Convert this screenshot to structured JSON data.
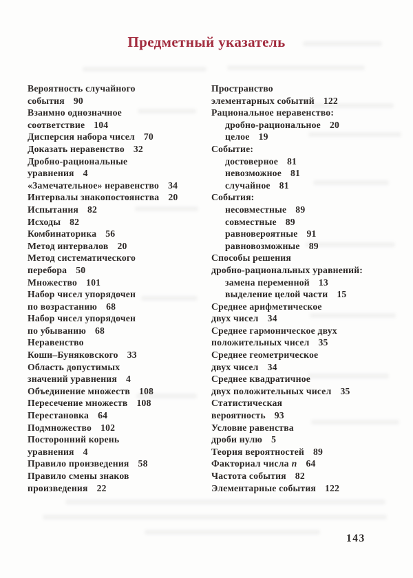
{
  "page": {
    "title": "Предметный указатель",
    "page_number": "143"
  },
  "index": {
    "columns": [
      {
        "side": "left",
        "lines": [
          {
            "text": "Вероятность случайного"
          },
          {
            "text": "события",
            "page": "90"
          },
          {
            "text": "Взаимно однозначное"
          },
          {
            "text": "соответствие",
            "page": "104"
          },
          {
            "text": "Дисперсия набора чисел",
            "page": "70"
          },
          {
            "text": "Доказать неравенство",
            "page": "32"
          },
          {
            "text": "Дробно-рациональные"
          },
          {
            "text": "уравнения",
            "page": "4"
          },
          {
            "text": "«Замечательное» неравенство",
            "page": "34"
          },
          {
            "text": "Интервалы знакопостоянства",
            "page": "20"
          },
          {
            "text": "Испытания",
            "page": "82"
          },
          {
            "text": "Исходы",
            "page": "82"
          },
          {
            "text": "Комбинаторика",
            "page": "56"
          },
          {
            "text": "Метод интервалов",
            "page": "20"
          },
          {
            "text": "Метод систематического"
          },
          {
            "text": "перебора",
            "page": "50"
          },
          {
            "text": "Множество",
            "page": "101"
          },
          {
            "text": "Набор чисел упорядочен"
          },
          {
            "text": "по возрастанию",
            "page": "68"
          },
          {
            "text": "Набор чисел упорядочен"
          },
          {
            "text": "по убыванию",
            "page": "68"
          },
          {
            "text": "Неравенство"
          },
          {
            "text": "Коши–Буняковского",
            "page": "33"
          },
          {
            "text": "Область допустимых"
          },
          {
            "text": "значений уравнения",
            "page": "4"
          },
          {
            "text": "Объединение множеств",
            "page": "108"
          },
          {
            "text": "Пересечение множеств",
            "page": "108"
          },
          {
            "text": "Перестановка",
            "page": "64"
          },
          {
            "text": "Подмножество",
            "page": "102"
          },
          {
            "text": "Посторонний корень"
          },
          {
            "text": "уравнения",
            "page": "4"
          },
          {
            "text": "Правило произведения",
            "page": "58"
          },
          {
            "text": "Правило смены знаков"
          },
          {
            "text": "произведения",
            "page": "22"
          }
        ]
      },
      {
        "side": "right",
        "lines": [
          {
            "text": "Пространство"
          },
          {
            "text": "элементарных событий",
            "page": "122"
          },
          {
            "text": "Рациональное неравенство:"
          },
          {
            "text": "дробно-рациональное",
            "page": "20",
            "indent": true
          },
          {
            "text": "целое",
            "page": "19",
            "indent": true
          },
          {
            "text": "Событие:"
          },
          {
            "text": "достоверное",
            "page": "81",
            "indent": true
          },
          {
            "text": "невозможное",
            "page": "81",
            "indent": true
          },
          {
            "text": "случайное",
            "page": "81",
            "indent": true
          },
          {
            "text": "События:"
          },
          {
            "text": "несовместные",
            "page": "89",
            "indent": true
          },
          {
            "text": "совместные",
            "page": "89",
            "indent": true
          },
          {
            "text": "равновероятные",
            "page": "91",
            "indent": true
          },
          {
            "text": "равновозможные",
            "page": "89",
            "indent": true
          },
          {
            "text": "Способы решения"
          },
          {
            "text": "дробно-рациональных уравнений:"
          },
          {
            "text": "замена переменной",
            "page": "13",
            "indent": true
          },
          {
            "text": "выделение целой части",
            "page": "15",
            "indent": true
          },
          {
            "text": "Среднее арифметическое"
          },
          {
            "text": "двух чисел",
            "page": "34"
          },
          {
            "text": "Среднее гармоническое двух"
          },
          {
            "text": "положительных чисел",
            "page": "35"
          },
          {
            "text": "Среднее геометрическое"
          },
          {
            "text": "двух чисел",
            "page": "34"
          },
          {
            "text": "Среднее квадратичное"
          },
          {
            "text": "двух положительных чисел",
            "page": "35"
          },
          {
            "text": "Статистическая"
          },
          {
            "text": "вероятность",
            "page": "93"
          },
          {
            "text": "Условие равенства"
          },
          {
            "text": "дроби нулю",
            "page": "5"
          },
          {
            "text": "Теория вероятностей",
            "page": "89"
          },
          {
            "text": "Факториал числа",
            "var": "n",
            "page": "64"
          },
          {
            "text": "Частота события",
            "page": "82"
          },
          {
            "text": "Элементарные события",
            "page": "122"
          }
        ]
      }
    ]
  },
  "colors": {
    "title_accent": "#a22c3e",
    "body_text": "#2e2a28",
    "paper": "#fdfdfc"
  }
}
